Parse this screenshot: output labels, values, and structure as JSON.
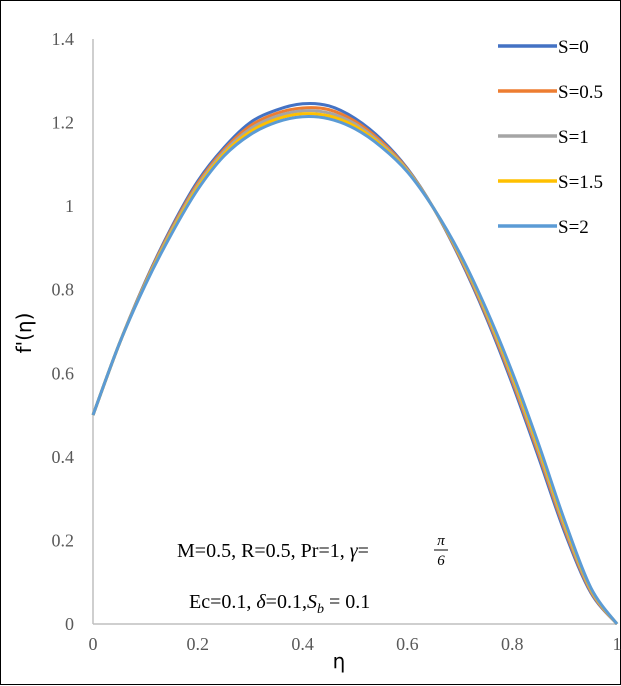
{
  "chart_data": {
    "type": "line",
    "xlabel": "η",
    "ylabel": "f'(η)",
    "xlim": [
      0,
      1
    ],
    "ylim": [
      0,
      1.4
    ],
    "x_ticks": [
      "0",
      "0.2",
      "0.4",
      "0.6",
      "0.8",
      "1"
    ],
    "y_ticks": [
      "0",
      "0.2",
      "0.4",
      "0.6",
      "0.8",
      "1",
      "1.2",
      "1.4"
    ],
    "grid": false,
    "legend_position": "top-right",
    "x": [
      0,
      0.05,
      0.1,
      0.15,
      0.2,
      0.25,
      0.3,
      0.35,
      0.4,
      0.45,
      0.5,
      0.55,
      0.6,
      0.65,
      0.7,
      0.75,
      0.8,
      0.85,
      0.9,
      0.95,
      1
    ],
    "series": [
      {
        "name": "S=0",
        "color": "#4472C4",
        "values": [
          0.5,
          0.67,
          0.82,
          0.95,
          1.06,
          1.14,
          1.2,
          1.23,
          1.245,
          1.24,
          1.21,
          1.16,
          1.09,
          0.995,
          0.875,
          0.735,
          0.575,
          0.4,
          0.22,
          0.075,
          0
        ]
      },
      {
        "name": "S=0.5",
        "color": "#ED7D31",
        "values": [
          0.5,
          0.67,
          0.818,
          0.946,
          1.055,
          1.135,
          1.192,
          1.222,
          1.235,
          1.231,
          1.203,
          1.155,
          1.088,
          0.995,
          0.878,
          0.74,
          0.582,
          0.408,
          0.227,
          0.078,
          0
        ]
      },
      {
        "name": "S=1",
        "color": "#A5A5A5",
        "values": [
          0.5,
          0.67,
          0.816,
          0.942,
          1.05,
          1.13,
          1.185,
          1.215,
          1.228,
          1.223,
          1.197,
          1.15,
          1.086,
          0.995,
          0.881,
          0.745,
          0.589,
          0.416,
          0.234,
          0.081,
          0
        ]
      },
      {
        "name": "S=1.5",
        "color": "#FFC000",
        "values": [
          0.5,
          0.67,
          0.814,
          0.938,
          1.045,
          1.125,
          1.178,
          1.208,
          1.221,
          1.216,
          1.191,
          1.146,
          1.084,
          0.995,
          0.884,
          0.75,
          0.596,
          0.424,
          0.241,
          0.084,
          0
        ]
      },
      {
        "name": "S=2",
        "color": "#5B9BD5",
        "values": [
          0.5,
          0.67,
          0.812,
          0.934,
          1.04,
          1.12,
          1.171,
          1.201,
          1.214,
          1.209,
          1.185,
          1.142,
          1.082,
          0.995,
          0.887,
          0.755,
          0.603,
          0.432,
          0.248,
          0.087,
          0
        ]
      }
    ],
    "annotations": {
      "line1_prefix": "M=0.5, R=0.5, Pr=1, ",
      "line1_gamma": "γ",
      "line1_eq": "=",
      "line1_frac_num": "π",
      "line1_frac_den": "6",
      "line2_prefix": "Ec=0.1, ",
      "line2_delta": "δ",
      "line2_mid": "=0.1,",
      "line2_sb": "S",
      "line2_sb_sub": "b",
      "line2_suffix": " = 0.1"
    }
  }
}
